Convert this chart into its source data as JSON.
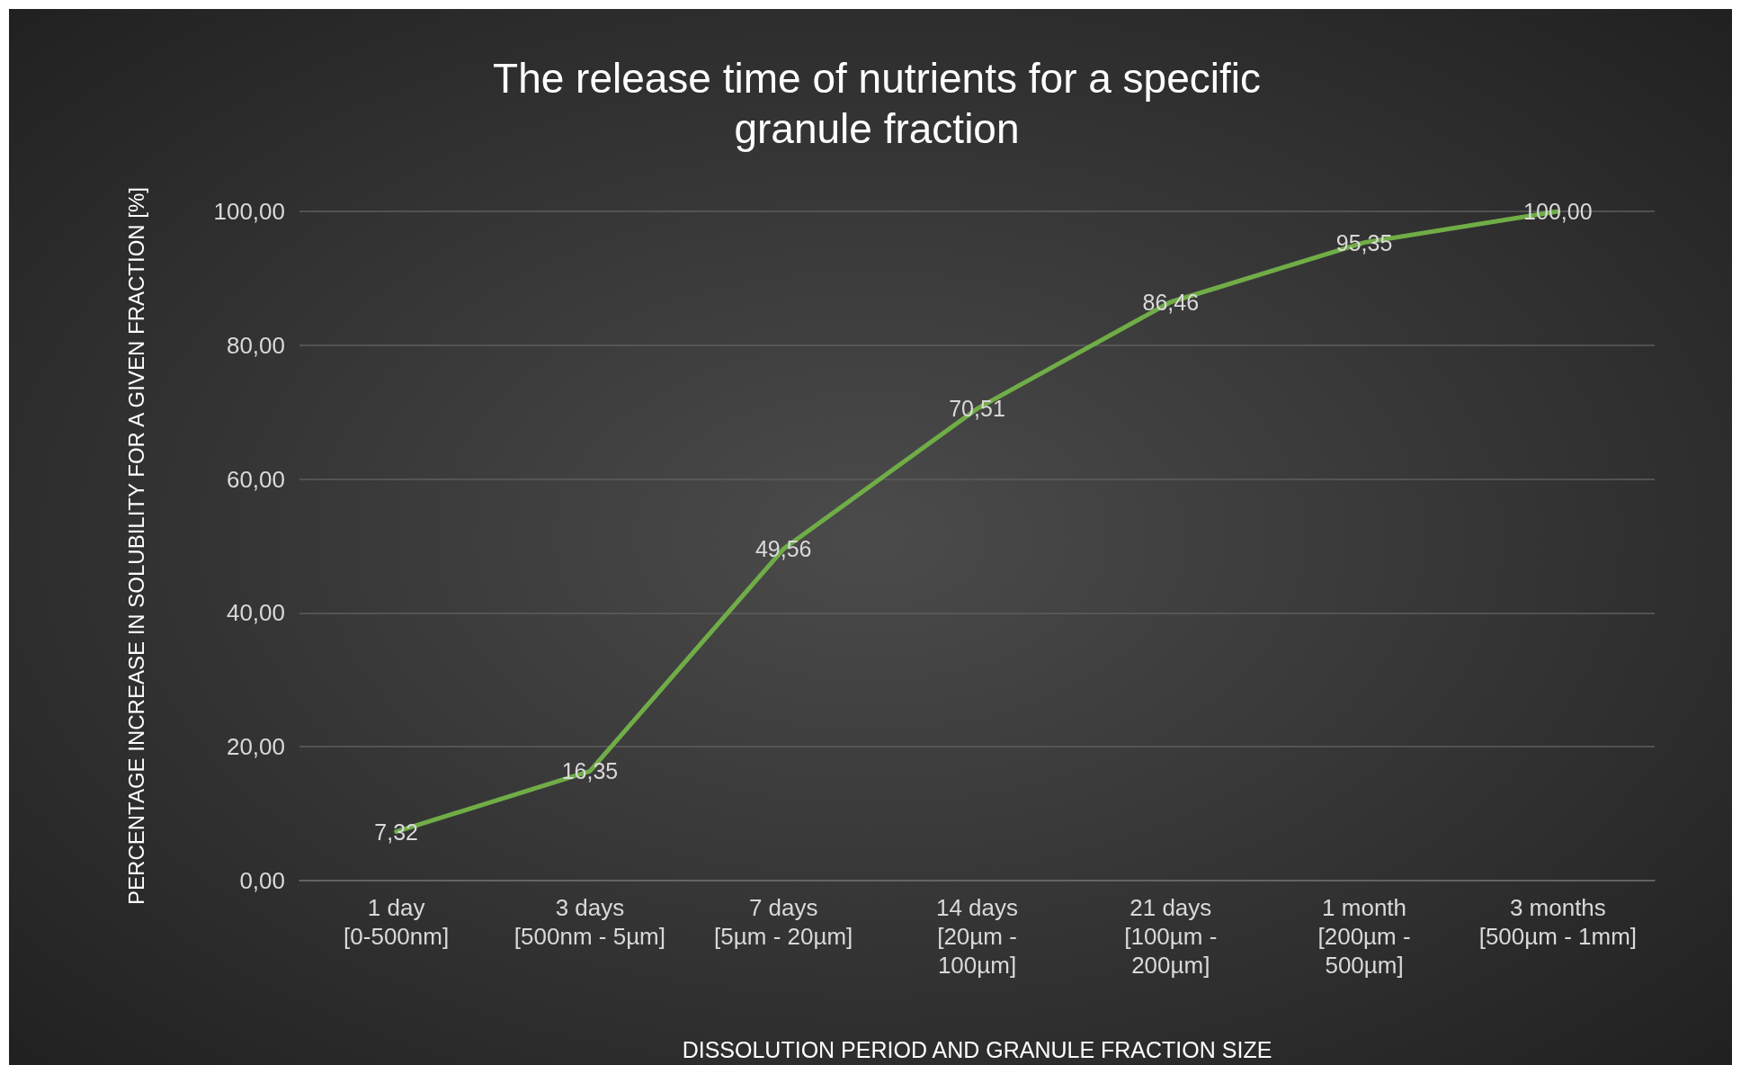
{
  "chart_data": {
    "type": "line",
    "title": "The release time of nutrients for a specific\ngranule fraction",
    "xlabel": "DISSOLUTION PERIOD AND GRANULE FRACTION SIZE",
    "ylabel": "PERCENTAGE INCREASE IN SOLUBILITY FOR A GIVEN FRACTION [%]",
    "categories": [
      "1 day\n[0-500nm]",
      "3 days\n[500nm - 5µm]",
      "7 days\n[5µm - 20µm]",
      "14 days\n[20µm -\n100µm]",
      "21 days\n[100µm -\n200µm]",
      "1 month\n[200µm -\n500µm]",
      "3 months\n[500µm - 1mm]"
    ],
    "series": [
      {
        "color": "#70ad47",
        "values": [
          7.32,
          16.35,
          49.56,
          70.51,
          86.46,
          95.35,
          100.0
        ],
        "value_labels": [
          "7,32",
          "16,35",
          "49,56",
          "70,51",
          "86,46",
          "95,35",
          "100,00"
        ]
      }
    ],
    "ylim": [
      0,
      100
    ],
    "yticks": [
      {
        "value": 0,
        "label": "0,00"
      },
      {
        "value": 20,
        "label": "20,00"
      },
      {
        "value": 40,
        "label": "40,00"
      },
      {
        "value": 60,
        "label": "60,00"
      },
      {
        "value": 80,
        "label": "80,00"
      },
      {
        "value": 100,
        "label": "100,00"
      }
    ],
    "grid": "y",
    "marker": "none",
    "line_style": "solid"
  }
}
